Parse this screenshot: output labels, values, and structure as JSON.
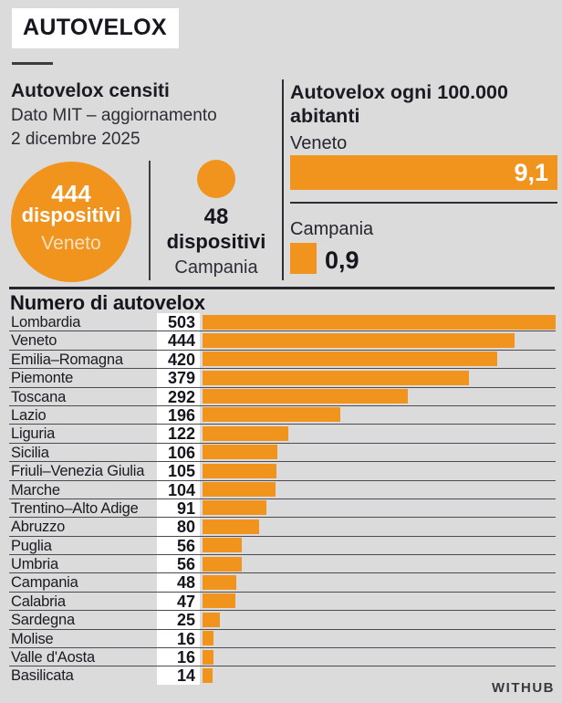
{
  "page": {
    "title": "AUTOVELOX",
    "brand": "WITHUB",
    "background_color": "#DBDBDB",
    "accent_orange": "#F0941E",
    "ink_color": "#1A1A22"
  },
  "censiti": {
    "heading": "Autovelox censiti",
    "source_line1": "Dato MIT – aggiornamento",
    "source_line2": "2 dicembre 2025",
    "veneto": {
      "value": "444",
      "unit": "dispositivi",
      "region": "Veneto"
    },
    "campania": {
      "value": "48",
      "unit": "dispositivi",
      "region": "Campania"
    }
  },
  "per_capita": {
    "heading_line1": "Autovelox ogni 100.000",
    "heading_line2": "abitanti",
    "veneto": {
      "region": "Veneto",
      "label": "9,1",
      "value": 9.1
    },
    "campania": {
      "region": "Campania",
      "label": "0,9",
      "value": 0.9
    }
  },
  "chart": {
    "title": "Numero di autovelox"
  },
  "chart_data": [
    {
      "type": "bar",
      "orientation": "horizontal",
      "title": "Numero di autovelox",
      "categories": [
        "Lombardia",
        "Veneto",
        "Emilia–Romagna",
        "Piemonte",
        "Toscana",
        "Lazio",
        "Liguria",
        "Sicilia",
        "Friuli–Venezia Giulia",
        "Marche",
        "Trentino–Alto Adige",
        "Abruzzo",
        "Puglia",
        "Umbria",
        "Campania",
        "Calabria",
        "Sardegna",
        "Molise",
        "Valle d'Aosta",
        "Basilicata"
      ],
      "values": [
        503,
        444,
        420,
        379,
        292,
        196,
        122,
        106,
        105,
        104,
        91,
        80,
        56,
        56,
        48,
        47,
        25,
        16,
        16,
        14
      ],
      "xlim": [
        0,
        503
      ],
      "bar_color": "#F0941E",
      "grid": false,
      "legend": false,
      "value_labels": true
    },
    {
      "type": "bar",
      "orientation": "horizontal",
      "title": "Autovelox ogni 100.000 abitanti",
      "categories": [
        "Veneto",
        "Campania"
      ],
      "values": [
        9.1,
        0.9
      ],
      "xlim": [
        0,
        9.1
      ],
      "bar_color": "#F0941E",
      "value_labels": true
    },
    {
      "type": "bubble",
      "title": "Autovelox censiti — Dato MIT, aggiornamento 2 dicembre 2025",
      "categories": [
        "Veneto",
        "Campania"
      ],
      "values": [
        444,
        48
      ],
      "unit": "dispositivi",
      "bubble_color": "#F0941E"
    }
  ]
}
